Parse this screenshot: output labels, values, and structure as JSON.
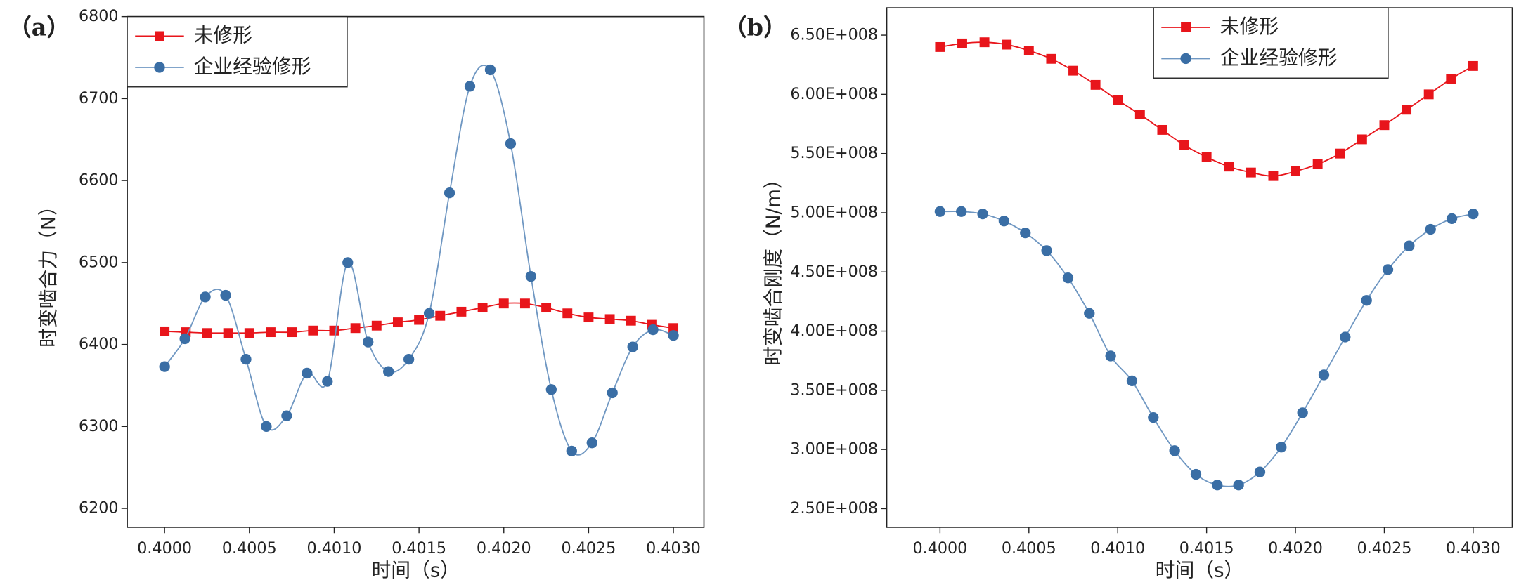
{
  "chart_data": [
    {
      "type": "line",
      "panel": "（a）",
      "xlabel": "时间（s）",
      "ylabel": "时变啮合力（N）",
      "xlim": [
        0.39978,
        0.40318
      ],
      "ylim": [
        6177,
        6800
      ],
      "xticks": [
        {
          "value": 0.4,
          "label": "0.4000"
        },
        {
          "value": 0.4005,
          "label": "0.4005"
        },
        {
          "value": 0.401,
          "label": "0.4010"
        },
        {
          "value": 0.4015,
          "label": "0.4015"
        },
        {
          "value": 0.402,
          "label": "0.4020"
        },
        {
          "value": 0.4025,
          "label": "0.4025"
        },
        {
          "value": 0.403,
          "label": "0.4030"
        }
      ],
      "yticks": [
        6200,
        6300,
        6400,
        6500,
        6600,
        6700,
        6800
      ],
      "legend": "upper left",
      "series": [
        {
          "name": "未修形",
          "color": "#e8151b",
          "marker": "square",
          "x": [
            0.4,
            0.400125,
            0.40025,
            0.400375,
            0.4005,
            0.400625,
            0.40075,
            0.400875,
            0.401,
            0.401125,
            0.40125,
            0.401375,
            0.4015,
            0.401625,
            0.40175,
            0.401875,
            0.402,
            0.402125,
            0.40225,
            0.402375,
            0.4025,
            0.402625,
            0.40275,
            0.402875,
            0.403
          ],
          "values": [
            6416,
            6415,
            6414,
            6414,
            6414,
            6415,
            6415,
            6417,
            6417,
            6420,
            6423,
            6427,
            6430,
            6435,
            6440,
            6445,
            6450,
            6450,
            6445,
            6438,
            6433,
            6431,
            6429,
            6424,
            6420
          ]
        },
        {
          "name": "企业经验修形",
          "color": "#3a6ea5",
          "marker": "circle",
          "x": [
            0.4,
            0.40012,
            0.40024,
            0.40036,
            0.40048,
            0.4006,
            0.40072,
            0.40084,
            0.40096,
            0.40108,
            0.4012,
            0.40132,
            0.40144,
            0.40156,
            0.40168,
            0.4018,
            0.40192,
            0.40204,
            0.40216,
            0.40228,
            0.4024,
            0.40252,
            0.40264,
            0.40276,
            0.40288,
            0.403
          ],
          "values": [
            6373,
            6407,
            6458,
            6460,
            6382,
            6300,
            6313,
            6365,
            6355,
            6500,
            6403,
            6367,
            6382,
            6438,
            6585,
            6715,
            6735,
            6645,
            6483,
            6345,
            6270,
            6280,
            6341,
            6397,
            6418,
            6411
          ]
        }
      ]
    },
    {
      "type": "line",
      "panel": "（b）",
      "xlabel": "时间（s）",
      "ylabel": "时变啮合刚度（N/m）",
      "xlim": [
        0.3997,
        0.40322
      ],
      "ylim": [
        234300000,
        673100000
      ],
      "xticks": [
        {
          "value": 0.4,
          "label": "0.4000"
        },
        {
          "value": 0.4005,
          "label": "0.4005"
        },
        {
          "value": 0.401,
          "label": "0.4010"
        },
        {
          "value": 0.4015,
          "label": "0.4015"
        },
        {
          "value": 0.402,
          "label": "0.4020"
        },
        {
          "value": 0.4025,
          "label": "0.4025"
        },
        {
          "value": 0.403,
          "label": "0.4030"
        }
      ],
      "yticks": [
        {
          "value": 250000000,
          "label": "2.50E+008"
        },
        {
          "value": 300000000,
          "label": "3.00E+008"
        },
        {
          "value": 350000000,
          "label": "3.50E+008"
        },
        {
          "value": 400000000,
          "label": "4.00E+008"
        },
        {
          "value": 450000000,
          "label": "4.50E+008"
        },
        {
          "value": 500000000,
          "label": "5.00E+008"
        },
        {
          "value": 550000000,
          "label": "5.50E+008"
        },
        {
          "value": 600000000,
          "label": "6.00E+008"
        },
        {
          "value": 650000000,
          "label": "6.50E+008"
        }
      ],
      "legend": "upper center",
      "series": [
        {
          "name": "未修形",
          "color": "#e8151b",
          "marker": "square",
          "x": [
            0.4,
            0.400125,
            0.40025,
            0.400375,
            0.4005,
            0.400625,
            0.40075,
            0.400875,
            0.401,
            0.401125,
            0.40125,
            0.401375,
            0.4015,
            0.401625,
            0.40175,
            0.401875,
            0.402,
            0.402125,
            0.40225,
            0.402375,
            0.4025,
            0.402625,
            0.40275,
            0.402875,
            0.403
          ],
          "values": [
            640000000,
            643000000,
            644000000,
            642000000,
            637000000,
            630000000,
            620000000,
            608000000,
            595000000,
            583000000,
            570000000,
            557000000,
            547000000,
            539000000,
            534000000,
            531000000,
            535000000,
            541000000,
            550000000,
            562000000,
            574000000,
            587000000,
            600000000,
            613000000,
            624000000
          ]
        },
        {
          "name": "企业经验修形",
          "color": "#3a6ea5",
          "marker": "circle",
          "x": [
            0.4,
            0.40012,
            0.40024,
            0.40036,
            0.40048,
            0.4006,
            0.40072,
            0.40084,
            0.40096,
            0.40108,
            0.4012,
            0.40132,
            0.40144,
            0.40156,
            0.40168,
            0.4018,
            0.40192,
            0.40204,
            0.40216,
            0.40228,
            0.4024,
            0.40252,
            0.40264,
            0.40276,
            0.40288,
            0.403
          ],
          "values": [
            501000000,
            501000000,
            499000000,
            493000000,
            483000000,
            468000000,
            445000000,
            415000000,
            379000000,
            358000000,
            327000000,
            299000000,
            279000000,
            270000000,
            270000000,
            281000000,
            302000000,
            331000000,
            363000000,
            395000000,
            426000000,
            452000000,
            472000000,
            486000000,
            495000000,
            499000000
          ]
        }
      ]
    }
  ]
}
